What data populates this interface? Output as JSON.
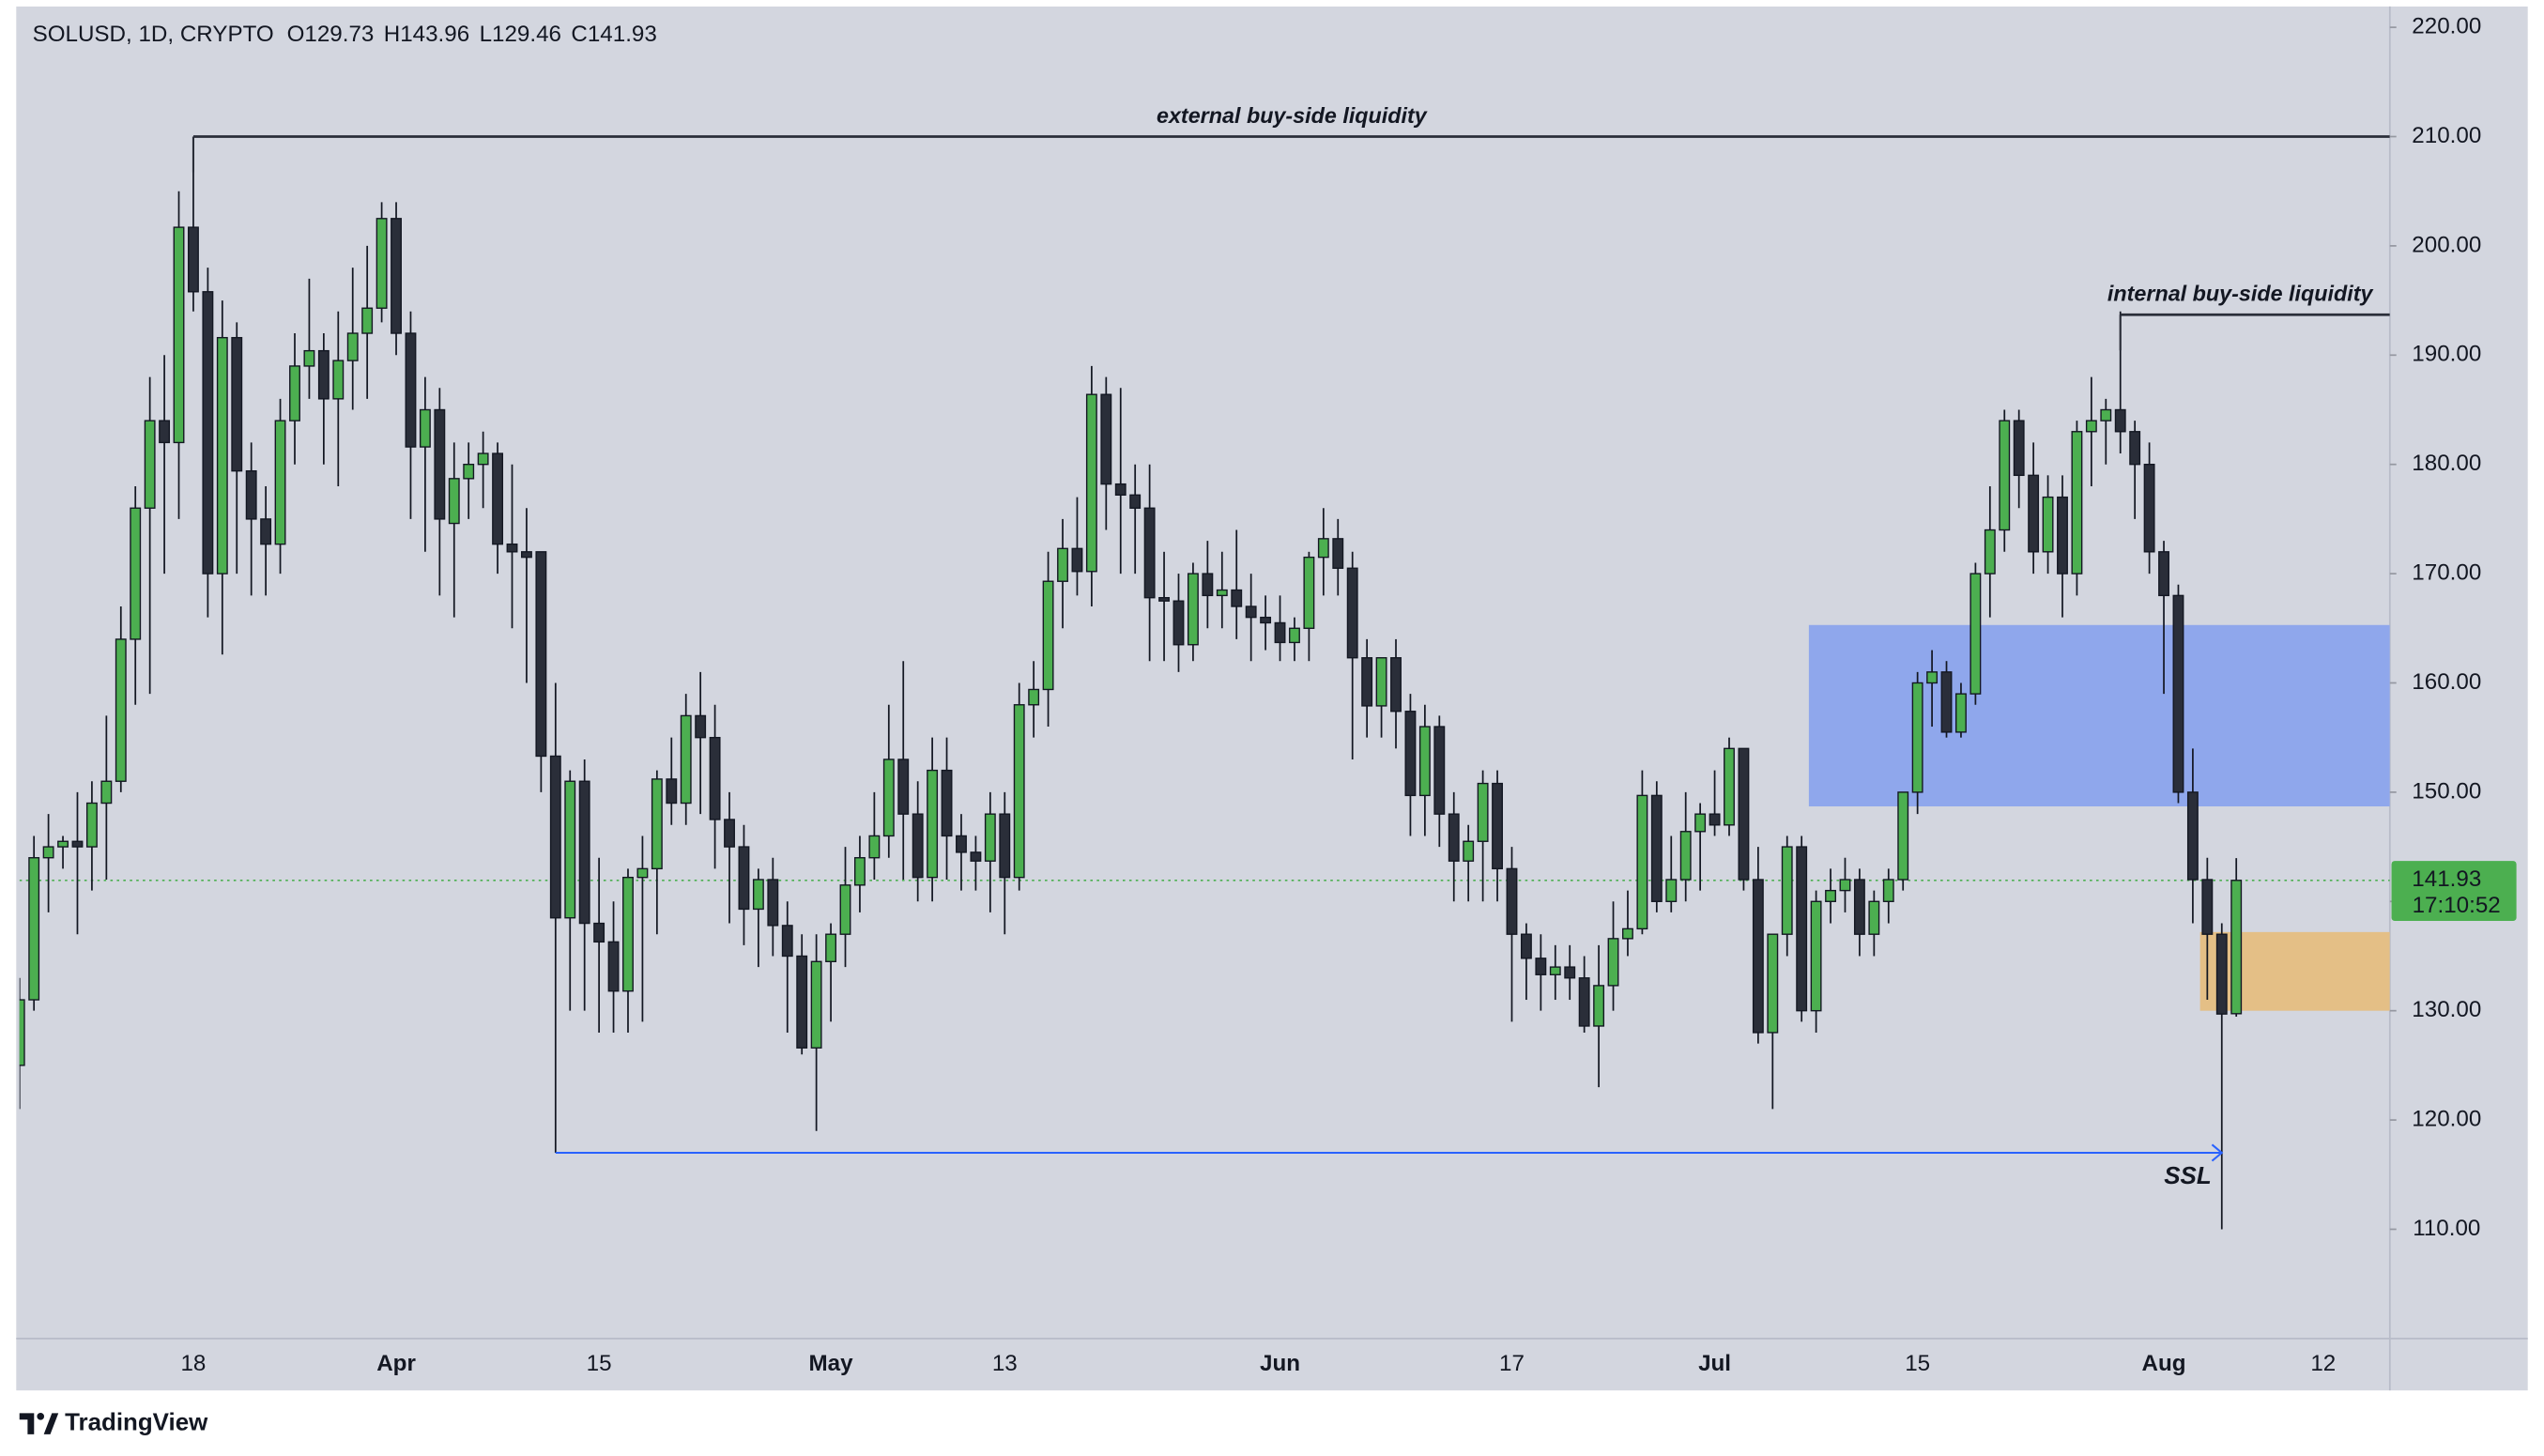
{
  "chart_data": {
    "type": "candlestick",
    "header": {
      "symbol": "SOLUSD, 1D, CRYPTO",
      "ohlc": [
        "O129.73",
        "H143.96",
        "L129.46",
        "C141.93"
      ]
    },
    "brand": "TradingView",
    "categories": [
      null,
      null,
      null,
      null,
      null,
      null,
      null,
      null,
      null,
      null,
      null,
      null,
      "18",
      null,
      null,
      null,
      null,
      null,
      null,
      null,
      null,
      null,
      null,
      null,
      null,
      null,
      "Apr",
      null,
      null,
      null,
      null,
      null,
      null,
      null,
      null,
      null,
      null,
      null,
      null,
      null,
      "15",
      null,
      null,
      null,
      null,
      null,
      null,
      null,
      null,
      null,
      null,
      null,
      null,
      null,
      null,
      null,
      "May",
      null,
      null,
      null,
      null,
      null,
      null,
      null,
      null,
      null,
      null,
      null,
      "13",
      null,
      null,
      null,
      null,
      null,
      null,
      null,
      null,
      null,
      null,
      null,
      null,
      null,
      null,
      null,
      null,
      null,
      null,
      "Jun",
      null,
      null,
      null,
      null,
      null,
      null,
      null,
      null,
      null,
      null,
      null,
      null,
      null,
      null,
      null,
      "17",
      null,
      null,
      null,
      null,
      null,
      null,
      null,
      null,
      null,
      null,
      null,
      null,
      null,
      "Jul",
      null,
      null,
      null,
      null,
      null,
      null,
      null,
      null,
      null,
      null,
      null,
      null,
      null,
      "15",
      null,
      null,
      null,
      null,
      null,
      null,
      null,
      null,
      null,
      null,
      null,
      null,
      null,
      null,
      null,
      null,
      "Aug",
      null,
      null,
      null,
      null,
      null,
      null,
      null,
      null,
      null,
      null,
      "12",
      null,
      null,
      null,
      null
    ],
    "open": [
      125,
      131,
      144,
      145,
      145.5,
      145,
      149,
      151,
      164,
      176,
      184,
      182,
      201.7,
      195.8,
      170,
      191.6,
      179.4,
      175,
      172.7,
      184,
      189,
      190.4,
      186,
      189.5,
      192,
      194.3,
      202.5,
      192,
      181.6,
      185,
      174.6,
      178.7,
      180,
      181,
      172.7,
      172,
      172,
      153.3,
      138.5,
      151,
      138,
      136.3,
      131.8,
      142.2,
      143,
      151.2,
      149,
      157,
      155,
      147.5,
      145,
      139.3,
      142,
      137.8,
      135,
      126.6,
      134.5,
      137,
      141.5,
      144,
      146,
      153,
      148,
      142.2,
      152,
      146,
      144.5,
      143.7,
      148,
      142.2,
      158,
      159.4,
      169.3,
      172.3,
      170.2,
      186.4,
      178.2,
      177.2,
      176,
      167.8,
      167.5,
      163.5,
      170,
      168,
      168.5,
      167,
      166,
      165.5,
      163.7,
      165,
      171.5,
      173.2,
      170.5,
      162.3,
      157.9,
      162.3,
      157.4,
      149.7,
      156,
      148,
      143.7,
      145.5,
      150.8,
      143,
      137,
      134.8,
      133.3,
      134,
      133,
      128.6,
      132.3,
      136.6,
      137.5,
      149.7,
      140,
      142,
      146.4,
      148,
      147,
      154,
      142,
      128,
      137,
      145,
      130,
      140,
      141,
      142,
      137,
      140,
      142,
      150,
      160,
      161,
      155.5,
      159,
      170,
      174,
      184,
      179,
      172,
      177,
      170,
      183,
      184,
      185,
      183,
      180,
      172,
      168,
      150,
      142,
      137,
      129.73,
      null,
      null,
      null,
      null,
      null,
      null,
      null,
      null,
      null,
      null
    ],
    "high": [
      133,
      146,
      148,
      146,
      150,
      151,
      157,
      167,
      178,
      188,
      190,
      205,
      210,
      198,
      195,
      193,
      182,
      178,
      186,
      192,
      197,
      192,
      194,
      198,
      200,
      204,
      204,
      194,
      188,
      187,
      182,
      182,
      183,
      182,
      180,
      176,
      172,
      160,
      152,
      153,
      144,
      140,
      143,
      146,
      152,
      155,
      159,
      161,
      158,
      150,
      147,
      143,
      144,
      140,
      137,
      137,
      138,
      145,
      146,
      150,
      158,
      162,
      151,
      155,
      155,
      148,
      146,
      150,
      150,
      160,
      162,
      172,
      175,
      177,
      189,
      188,
      187,
      180,
      180,
      172,
      170,
      171,
      173,
      172,
      174,
      170,
      168,
      168,
      166,
      172,
      176,
      175,
      172,
      164,
      162,
      164,
      159,
      158,
      157,
      150,
      147,
      152,
      152,
      145,
      138,
      137,
      136,
      136,
      135,
      136,
      140,
      141,
      152,
      151,
      146,
      150,
      149,
      152,
      155,
      154,
      145,
      137,
      146,
      146,
      141,
      143,
      144,
      143,
      141,
      143,
      150,
      161,
      163,
      162,
      160,
      171,
      178,
      185,
      185,
      182,
      179,
      179,
      184,
      188,
      186,
      194,
      184,
      182,
      173,
      169,
      154,
      144,
      138,
      143.96,
      null,
      null,
      null,
      null,
      null,
      null,
      null,
      null,
      null,
      null
    ],
    "low": [
      121,
      130,
      139,
      143,
      137,
      141,
      142,
      150,
      158,
      159,
      170,
      175,
      194,
      166,
      162.6,
      170,
      168,
      168,
      170,
      180,
      186,
      180,
      178,
      185,
      186,
      193,
      190,
      175,
      172,
      168,
      166,
      175,
      176,
      170,
      165,
      160,
      150,
      117,
      130,
      130,
      128,
      128,
      128,
      129,
      137,
      147,
      147,
      148,
      143,
      138,
      136,
      134,
      135,
      128,
      126,
      119,
      129,
      134,
      139,
      142,
      144,
      142,
      140,
      140,
      142,
      141,
      141,
      139,
      137,
      141,
      155,
      156,
      165,
      168,
      167,
      174,
      170,
      170,
      162,
      162,
      161,
      162,
      165,
      165,
      164,
      162,
      163,
      162,
      162,
      162,
      168,
      168,
      153,
      155,
      155,
      154,
      146,
      146,
      145,
      140,
      140,
      140,
      140,
      129,
      131,
      130,
      131,
      131,
      128,
      123,
      130,
      135,
      137,
      139,
      139,
      140,
      141,
      146,
      146,
      141,
      127,
      121,
      135,
      129,
      128,
      138,
      139,
      135,
      135,
      138,
      141,
      148,
      156,
      155,
      155,
      158,
      166,
      172,
      176,
      170,
      170,
      166,
      168,
      178,
      180,
      181,
      175,
      170,
      159,
      149,
      138,
      131,
      110,
      129.46,
      null,
      null,
      null,
      null,
      null,
      null,
      null,
      null,
      null,
      null
    ],
    "close": [
      131,
      144,
      145,
      145.5,
      145,
      149,
      151,
      164,
      176,
      184,
      182,
      201.7,
      195.8,
      170,
      191.6,
      179.4,
      175,
      172.7,
      184,
      189,
      190.4,
      186,
      189.5,
      192,
      194.3,
      202.5,
      192,
      181.6,
      185,
      175,
      178.7,
      180,
      181,
      172.7,
      172,
      171.5,
      153.3,
      138.5,
      151,
      138,
      136.3,
      131.8,
      142.2,
      143,
      151.2,
      149,
      157,
      155,
      147.5,
      145,
      139.3,
      142,
      137.8,
      135,
      126.6,
      134.5,
      137,
      141.5,
      144,
      146,
      153,
      148,
      142.2,
      152,
      146,
      144.5,
      143.7,
      148,
      142.2,
      158,
      159.4,
      169.3,
      172.3,
      170.2,
      186.4,
      178.2,
      177.2,
      176,
      167.8,
      167.5,
      163.5,
      170,
      168,
      168.5,
      167,
      166,
      165.5,
      163.7,
      165,
      171.5,
      173.2,
      170.5,
      162.3,
      157.9,
      162.3,
      157.4,
      149.7,
      156,
      148,
      143.7,
      145.5,
      150.8,
      143,
      137,
      134.8,
      133.3,
      134,
      133,
      128.6,
      132.3,
      136.6,
      137.5,
      149.7,
      140,
      142,
      146.4,
      148,
      147,
      154,
      142,
      128,
      137,
      145,
      130,
      140,
      141,
      142,
      137,
      140,
      142,
      150,
      160,
      161,
      155.5,
      159,
      170,
      174,
      184,
      179,
      172,
      177,
      170,
      183,
      184,
      185,
      183,
      180,
      172,
      168,
      150,
      142,
      137,
      129.7,
      141.93,
      null,
      null,
      null,
      null,
      null,
      null,
      null,
      null,
      null,
      null
    ],
    "up_color": "#4caf50",
    "down_color": "#2a2e39",
    "ylim": [
      100,
      222.5
    ],
    "yticks": [
      {
        "value": 110,
        "label": "110.00"
      },
      {
        "value": 120,
        "label": "120.00"
      },
      {
        "value": 130,
        "label": "130.00"
      },
      {
        "value": 140,
        "label": "140.00"
      },
      {
        "value": 150,
        "label": "150.00"
      },
      {
        "value": 160,
        "label": "160.00"
      },
      {
        "value": 170,
        "label": "170.00"
      },
      {
        "value": 180,
        "label": "180.00"
      },
      {
        "value": 190,
        "label": "190.00"
      },
      {
        "value": 200,
        "label": "200.00"
      },
      {
        "value": 210,
        "label": "210.00"
      },
      {
        "value": 220,
        "label": "220.00"
      }
    ],
    "last_price": {
      "value": 141.93,
      "countdown": "17:10:52",
      "color": "#4caf50"
    },
    "zones": [
      {
        "low": 148.7,
        "high": 165.3,
        "start_index": 124,
        "color": "#8fa7ec"
      },
      {
        "low": 130,
        "high": 137.2,
        "start_index": 151,
        "color": "#e4bf86"
      }
    ],
    "levels": [
      {
        "label": "external buy-side liquidity",
        "value": 210,
        "start_index": 12,
        "color": "#2a2e39"
      },
      {
        "label": "internal buy-side liquidity",
        "value": 193.7,
        "start_index": 145,
        "color": "#2a2e39"
      }
    ],
    "ssl": {
      "label": "SSL",
      "value": 117,
      "start_index": 37,
      "end_index": 152,
      "color": "#2962ff"
    }
  }
}
